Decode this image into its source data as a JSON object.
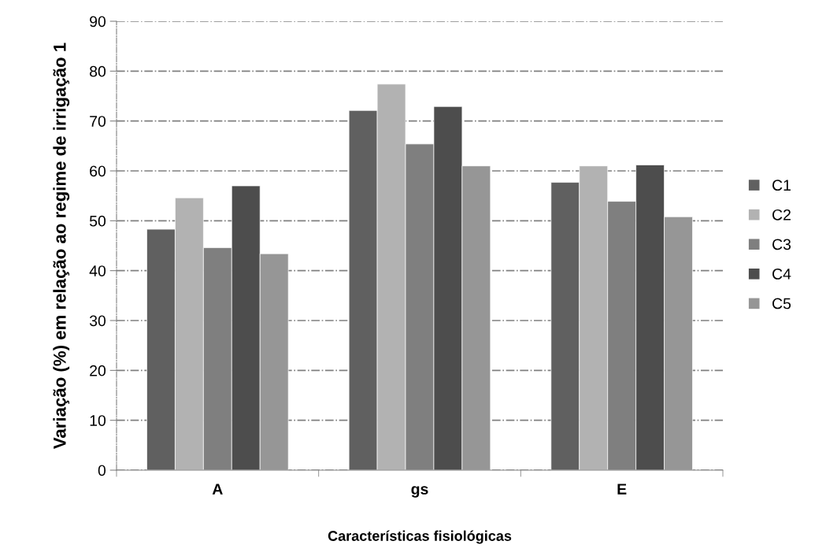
{
  "chart_data": {
    "type": "bar",
    "xlabel": "Características fisiológicas",
    "ylabel": "Variação (%) em relação ao regime de irrigação 1",
    "categories": [
      "A",
      "gs",
      "E"
    ],
    "series": [
      {
        "name": "C1",
        "color": "#606060",
        "values": [
          48.3,
          72.1,
          57.7
        ]
      },
      {
        "name": "C2",
        "color": "#b2b2b2",
        "values": [
          54.6,
          77.4,
          61.0
        ]
      },
      {
        "name": "C3",
        "color": "#7f7f7f",
        "values": [
          44.6,
          65.4,
          53.9
        ]
      },
      {
        "name": "C4",
        "color": "#4d4d4d",
        "values": [
          57.0,
          72.9,
          61.2
        ]
      },
      {
        "name": "C5",
        "color": "#969696",
        "values": [
          43.4,
          61.0,
          50.8
        ]
      }
    ],
    "ylim": [
      0,
      90
    ],
    "yticks": [
      0,
      10,
      20,
      30,
      40,
      50,
      60,
      70,
      80,
      90
    ],
    "grid": "y",
    "legend": "right"
  }
}
